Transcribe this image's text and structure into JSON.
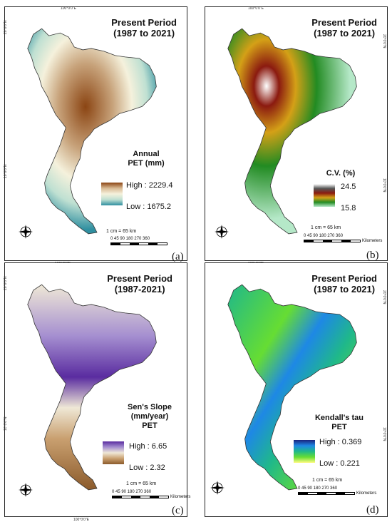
{
  "coords": {
    "top": "100°0'0\"E",
    "bottom": "100°0'0\"E",
    "north20": "20°0'0\"N",
    "north10": "10°0'0\"N"
  },
  "compass": {
    "n": "N",
    "s": "S",
    "e": "E",
    "w": "W"
  },
  "scale": {
    "ratio": "1 cm = 65 km",
    "ticks": "0  45 90     180    270    360",
    "unit": "Kilometers"
  },
  "panels": [
    {
      "id": "a",
      "label": "(a)",
      "title_line1": "Present Period",
      "title_line2": "(1987 to 2021)",
      "legend_title_line1": "Annual",
      "legend_title_line2": "PET (mm)",
      "legend_high": "High : 2229.4",
      "legend_low": "Low : 1675.2",
      "colors": [
        "#8b4513",
        "#c7a27a",
        "#f5f1dc",
        "#bfe0d2",
        "#2f8fa0"
      ]
    },
    {
      "id": "b",
      "label": "(b)",
      "title_line1": "Present Period",
      "title_line2": "(1987 to 2021)",
      "legend_title_line1": "C.V. (%)",
      "legend_title_line2": "",
      "legend_high": "24.5",
      "legend_low": "15.8",
      "colors": [
        "#ffffff",
        "#8b1a10",
        "#d4a017",
        "#228b22",
        "#b5e8c8"
      ]
    },
    {
      "id": "c",
      "label": "(c)",
      "title_line1": "Present Period",
      "title_line2": "(1987-2021)",
      "legend_title_line1": "Sen's Slope",
      "legend_title_line2": "(mm/year)",
      "legend_title_line3": "PET",
      "legend_high": "High : 6.65",
      "legend_low": "Low : 2.32",
      "colors": [
        "#5a2ca0",
        "#a58fd0",
        "#efe8d6",
        "#c9a070",
        "#8b5a2b"
      ]
    },
    {
      "id": "d",
      "label": "(d)",
      "title_line1": "Present Period",
      "title_line2": "(1987 to 2021)",
      "legend_title_line1": "Kendall's tau",
      "legend_title_line2": "PET",
      "legend_high": "High : 0.369",
      "legend_low": "Low : 0.221",
      "colors": [
        "#1a237e",
        "#1e88e5",
        "#1fb88a",
        "#66dd33",
        "#fffb80"
      ]
    }
  ]
}
